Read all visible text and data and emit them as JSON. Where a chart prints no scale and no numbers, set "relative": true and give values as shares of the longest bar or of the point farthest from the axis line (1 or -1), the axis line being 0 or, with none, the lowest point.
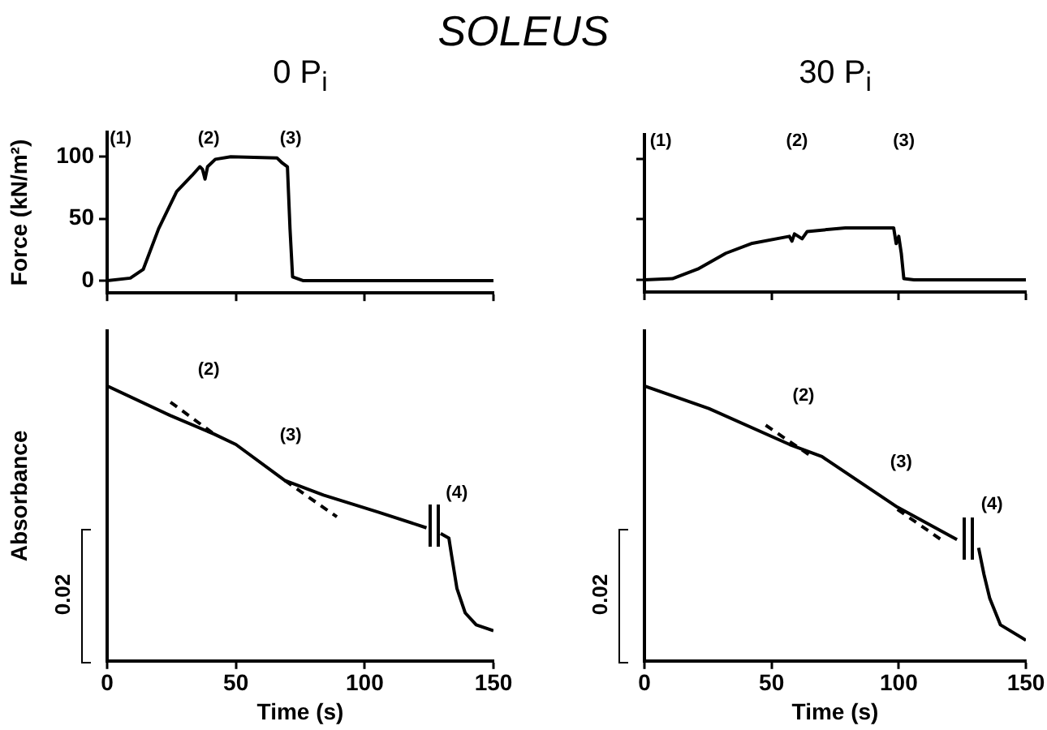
{
  "chart_data": [
    {
      "type": "line",
      "title": "SOLEUS",
      "subtitle": "0 P$_{i}$",
      "ylabel": "Force (kN/m²)",
      "xlim": [
        0,
        150
      ],
      "xticks": [
        0,
        50,
        100,
        150
      ],
      "ylim": [
        -10,
        120
      ],
      "yticks": [
        0,
        50,
        100
      ],
      "tick_labels": "y",
      "color": "#000000",
      "x": [
        0,
        9,
        14,
        20,
        27,
        33,
        36,
        37,
        38,
        39,
        42,
        48,
        66,
        68,
        70,
        71,
        72,
        76,
        150
      ],
      "values": [
        0,
        2,
        9,
        42,
        72,
        85,
        92,
        90,
        82,
        92,
        98,
        100,
        99,
        95,
        92,
        42,
        3,
        0,
        0
      ],
      "annotations": [
        "(1)",
        "(2)",
        "(3)"
      ]
    },
    {
      "type": "line",
      "subtitle": "30 P$_{i}$",
      "xlim": [
        0,
        150
      ],
      "xticks": [
        0,
        50,
        100,
        150
      ],
      "ylim": [
        -10,
        120
      ],
      "yticks": [
        0,
        50,
        100
      ],
      "tick_labels": false,
      "color": "#000000",
      "x": [
        0,
        11,
        21,
        32,
        42,
        57,
        58,
        59,
        62,
        64,
        79,
        98,
        99,
        100,
        101,
        102,
        106,
        150
      ],
      "values": [
        0,
        1,
        9,
        22,
        30,
        36,
        32,
        38,
        34,
        40,
        43,
        43,
        30,
        36,
        22,
        1,
        0,
        0
      ],
      "annotations": [
        "(1)",
        "(2)",
        "(3)"
      ]
    },
    {
      "type": "line",
      "xlabel": "Time (s)",
      "ylabel": "Absorbance",
      "relative": true,
      "xlim": [
        0,
        150
      ],
      "xticks": [
        0,
        50,
        100,
        150
      ],
      "tick_labels": "x",
      "annotations": [
        "(2)",
        "(3)",
        "(4)",
        "0.02"
      ],
      "series": [
        {
          "color": "#000000",
          "line_style": "solid",
          "x": [
            0,
            24.6,
            41.5,
            50,
            69,
            84,
            105,
            124,
            126.75,
            129.5,
            132.7,
            133.7,
            135.8,
            139,
            143.3,
            150
          ],
          "values": [
            1.0,
            0.892,
            0.825,
            0.787,
            0.656,
            0.603,
            0.542,
            0.484,
            null,
            0.463,
            0.446,
            0.386,
            0.264,
            0.175,
            0.131,
            0.11
          ]
        },
        {
          "color": "#000000",
          "line_style": "dashed",
          "x": [
            24.6,
            41.5
          ],
          "values": [
            0.941,
            0.825
          ]
        },
        {
          "color": "#000000",
          "line_style": "dashed",
          "x": [
            69,
            89.2
          ],
          "values": [
            0.656,
            0.524
          ]
        }
      ]
    },
    {
      "type": "line",
      "xlabel": "Time (s)",
      "relative": true,
      "xlim": [
        0,
        150
      ],
      "xticks": [
        0,
        50,
        100,
        150
      ],
      "tick_labels": "x",
      "annotations": [
        "(2)",
        "(3)",
        "(4)",
        "0.02"
      ],
      "series": [
        {
          "color": "#000000",
          "line_style": "solid",
          "x": [
            0,
            25.3,
            57.1,
            69.8,
            99.5,
            122.9,
            127.15,
            131.4,
            133.5,
            135.8,
            140,
            150
          ],
          "values": [
            1.0,
            0.918,
            0.787,
            0.743,
            0.559,
            0.441,
            null,
            0.411,
            0.315,
            0.227,
            0.131,
            0.075
          ]
        },
        {
          "color": "#000000",
          "line_style": "dashed",
          "x": [
            47.7,
            65.8
          ],
          "values": [
            0.857,
            0.743
          ]
        },
        {
          "color": "#000000",
          "line_style": "dashed",
          "x": [
            99.5,
            116.5
          ],
          "values": [
            0.551,
            0.442
          ]
        }
      ]
    }
  ]
}
